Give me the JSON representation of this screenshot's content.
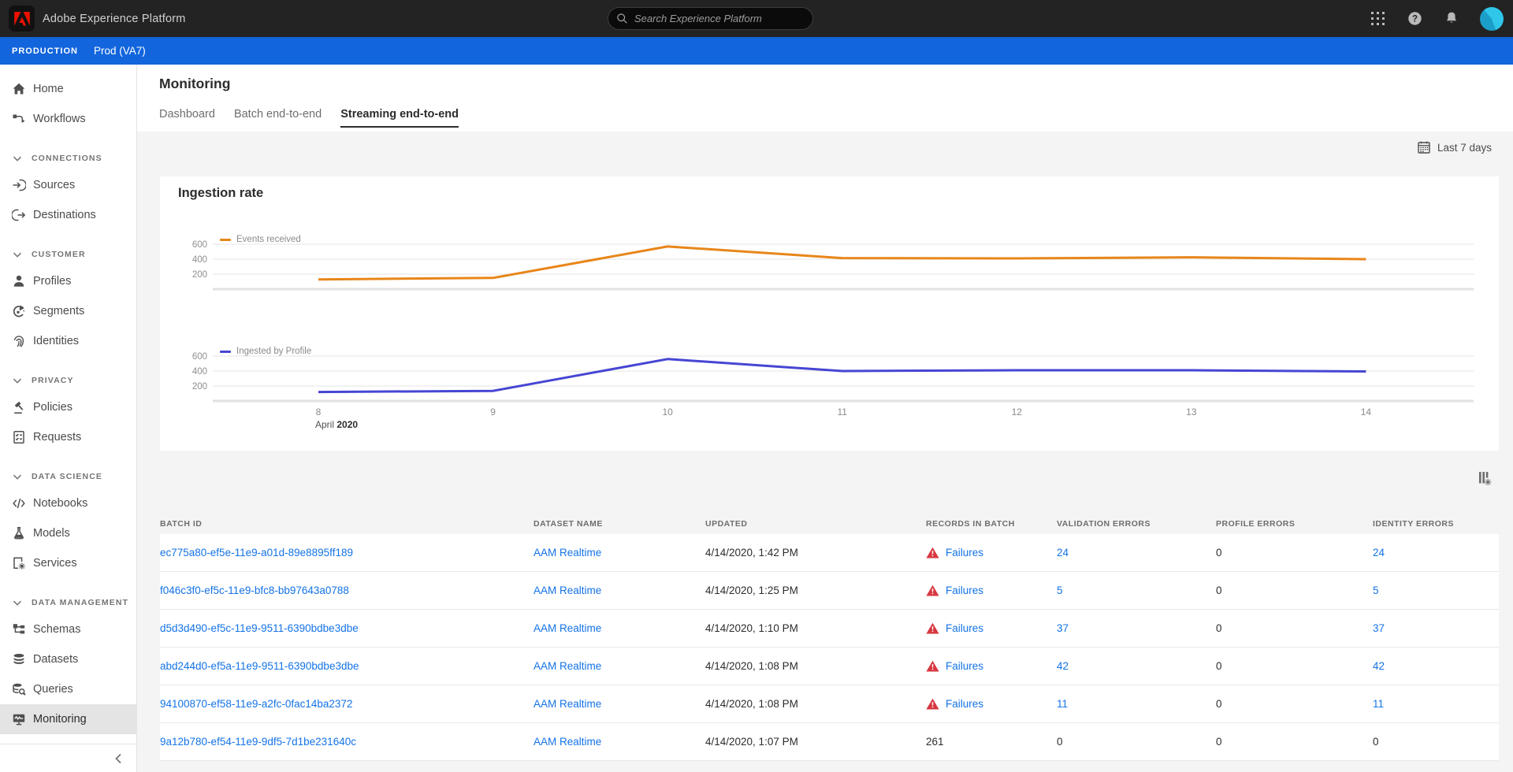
{
  "topbar": {
    "app_title": "Adobe Experience Platform",
    "search_placeholder": "Search Experience Platform"
  },
  "env_bar": {
    "label": "PRODUCTION",
    "environment": "Prod (VA7)"
  },
  "sidebar": {
    "items": [
      {
        "type": "item",
        "icon": "home",
        "label": "Home"
      },
      {
        "type": "item",
        "icon": "workflows",
        "label": "Workflows"
      },
      {
        "type": "section",
        "icon": "chevron-down",
        "label": "CONNECTIONS"
      },
      {
        "type": "item",
        "icon": "sources",
        "label": "Sources"
      },
      {
        "type": "item",
        "icon": "destinations",
        "label": "Destinations"
      },
      {
        "type": "section",
        "icon": "chevron-down",
        "label": "CUSTOMER"
      },
      {
        "type": "item",
        "icon": "profiles",
        "label": "Profiles"
      },
      {
        "type": "item",
        "icon": "segments",
        "label": "Segments"
      },
      {
        "type": "item",
        "icon": "identities",
        "label": "Identities"
      },
      {
        "type": "section",
        "icon": "chevron-down",
        "label": "PRIVACY"
      },
      {
        "type": "item",
        "icon": "policies",
        "label": "Policies"
      },
      {
        "type": "item",
        "icon": "requests",
        "label": "Requests"
      },
      {
        "type": "section",
        "icon": "chevron-down",
        "label": "DATA SCIENCE"
      },
      {
        "type": "item",
        "icon": "notebooks",
        "label": "Notebooks"
      },
      {
        "type": "item",
        "icon": "models",
        "label": "Models"
      },
      {
        "type": "item",
        "icon": "services",
        "label": "Services"
      },
      {
        "type": "section",
        "icon": "chevron-down",
        "label": "DATA MANAGEMENT"
      },
      {
        "type": "item",
        "icon": "schemas",
        "label": "Schemas"
      },
      {
        "type": "item",
        "icon": "datasets",
        "label": "Datasets"
      },
      {
        "type": "item",
        "icon": "queries",
        "label": "Queries"
      },
      {
        "type": "item",
        "icon": "monitoring",
        "label": "Monitoring",
        "active": true
      }
    ]
  },
  "page": {
    "title": "Monitoring",
    "tabs": [
      {
        "label": "Dashboard",
        "active": false
      },
      {
        "label": "Batch end-to-end",
        "active": false
      },
      {
        "label": "Streaming end-to-end",
        "active": true
      }
    ],
    "date_range": "Last 7 days"
  },
  "chart_card": {
    "title": "Ingestion rate"
  },
  "chart_data": [
    {
      "type": "line",
      "x": [
        8,
        9,
        10,
        11,
        12,
        13,
        14
      ],
      "series": [
        {
          "name": "Events received",
          "values": [
            130,
            150,
            570,
            415,
            410,
            425,
            400
          ]
        }
      ],
      "color": "#E8861A",
      "title": "Ingestion rate",
      "xlabel": "April 2020",
      "ylabel": "",
      "ylim": [
        0,
        650
      ],
      "yticks": [
        200,
        400,
        600
      ],
      "grid": true,
      "legend_position": "top-left"
    },
    {
      "type": "line",
      "x": [
        8,
        9,
        10,
        11,
        12,
        13,
        14
      ],
      "series": [
        {
          "name": "Ingested by Profile",
          "values": [
            120,
            135,
            560,
            400,
            410,
            410,
            395
          ]
        }
      ],
      "color": "#4646D3",
      "title": "Ingestion rate",
      "xlabel": "April 2020",
      "ylabel": "",
      "ylim": [
        0,
        650
      ],
      "yticks": [
        200,
        400,
        600
      ],
      "grid": true,
      "legend_position": "top-left"
    }
  ],
  "xaxis": {
    "ticks": [
      "8",
      "9",
      "10",
      "11",
      "12",
      "13",
      "14"
    ],
    "month": "April",
    "year": "2020"
  },
  "table": {
    "columns": [
      "BATCH ID",
      "DATASET NAME",
      "UPDATED",
      "RECORDS IN BATCH",
      "VALIDATION ERRORS",
      "PROFILE ERRORS",
      "IDENTITY ERRORS"
    ],
    "rows": [
      {
        "batch_id": "ec775a80-ef5e-11e9-a01d-89e8895ff189",
        "dataset": "AAM Realtime",
        "updated": "4/14/2020, 1:42 PM",
        "records": "Failures",
        "failed": true,
        "validation": "24",
        "profile": "0",
        "identity": "24"
      },
      {
        "batch_id": "f046c3f0-ef5c-11e9-bfc8-bb97643a0788",
        "dataset": "AAM Realtime",
        "updated": "4/14/2020, 1:25 PM",
        "records": "Failures",
        "failed": true,
        "validation": "5",
        "profile": "0",
        "identity": "5"
      },
      {
        "batch_id": "d5d3d490-ef5c-11e9-9511-6390bdbe3dbe",
        "dataset": "AAM Realtime",
        "updated": "4/14/2020, 1:10 PM",
        "records": "Failures",
        "failed": true,
        "validation": "37",
        "profile": "0",
        "identity": "37"
      },
      {
        "batch_id": "abd244d0-ef5a-11e9-9511-6390bdbe3dbe",
        "dataset": "AAM Realtime",
        "updated": "4/14/2020, 1:08 PM",
        "records": "Failures",
        "failed": true,
        "validation": "42",
        "profile": "0",
        "identity": "42"
      },
      {
        "batch_id": "94100870-ef58-11e9-a2fc-0fac14ba2372",
        "dataset": "AAM Realtime",
        "updated": "4/14/2020, 1:08 PM",
        "records": "Failures",
        "failed": true,
        "validation": "11",
        "profile": "0",
        "identity": "11"
      },
      {
        "batch_id": "9a12b780-ef54-11e9-9df5-7d1be231640c",
        "dataset": "AAM Realtime",
        "updated": "4/14/2020, 1:07 PM",
        "records": "261",
        "failed": false,
        "validation": "0",
        "profile": "0",
        "identity": "0"
      }
    ]
  },
  "colors": {
    "accent_blue": "#1473E6",
    "env_bar_blue": "#1265DC",
    "warning_red": "#D7373F",
    "events_received_orange": "#E8861A",
    "ingested_by_profile_indigo": "#4646D3",
    "avatar_cyan": "#2FC6EA"
  }
}
